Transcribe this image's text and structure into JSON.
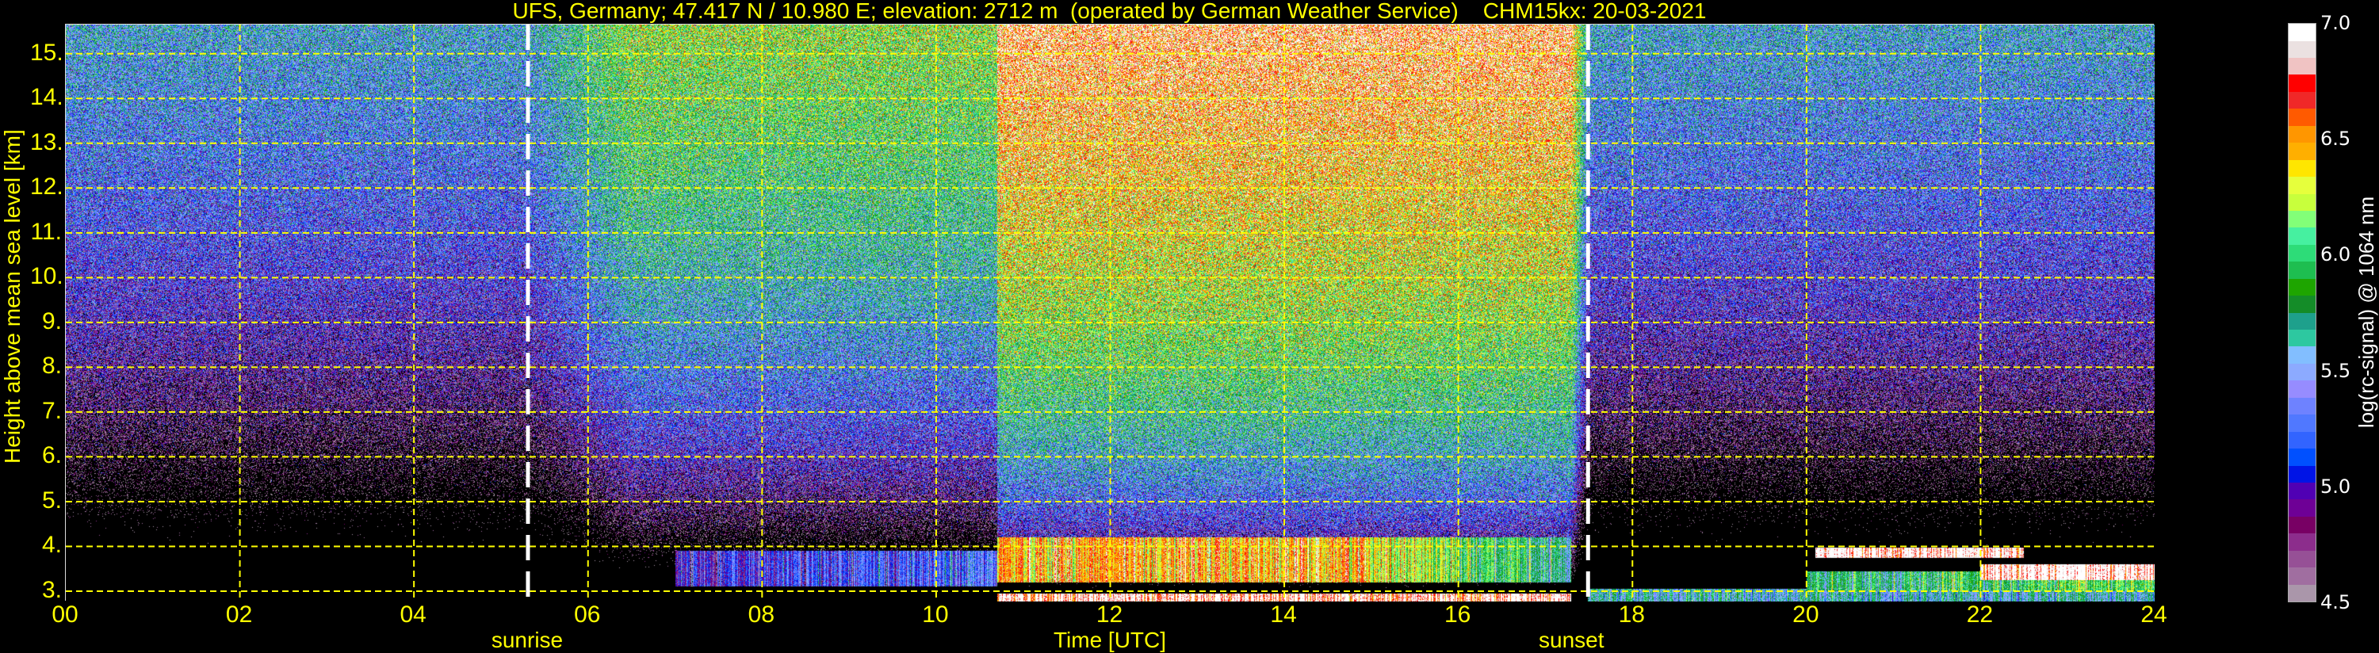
{
  "chart_data": {
    "type": "heatmap",
    "title": "UFS, Germany; 47.417 N / 10.980 E; elevation: 2712 m  (operated by German Weather Service)    CHM15kx: 20-03-2021",
    "xlabel": "Time [UTC]",
    "ylabel": "Height above mean sea level [km]",
    "xlim": [
      0,
      24
    ],
    "ylim": [
      2.77,
      15.65
    ],
    "xticks": [
      "00",
      "02",
      "04",
      "06",
      "08",
      "10",
      "12",
      "14",
      "16",
      "18",
      "20",
      "22",
      "24"
    ],
    "xtick_values": [
      0,
      2,
      4,
      6,
      8,
      10,
      12,
      14,
      16,
      18,
      20,
      22,
      24
    ],
    "yticks": [
      "3.",
      "4.",
      "5.",
      "6.",
      "7.",
      "8.",
      "9.",
      "10.",
      "11.",
      "12.",
      "13.",
      "14.",
      "15."
    ],
    "ytick_values": [
      3,
      4,
      5,
      6,
      7,
      8,
      9,
      10,
      11,
      12,
      13,
      14,
      15
    ],
    "grid": true,
    "grid_color": "#ffff00",
    "annotations": [
      {
        "label": "sunrise",
        "time": 5.31
      },
      {
        "label": "sunset",
        "time": 17.49
      }
    ],
    "colorbar": {
      "label": "log(rc-signal) @ 1064 nm",
      "range": [
        4.5,
        7.0
      ],
      "ticks": [
        "4.5",
        "5.0",
        "5.5",
        "6.0",
        "6.5",
        "7.0"
      ],
      "tick_values": [
        4.5,
        5.0,
        5.5,
        6.0,
        6.5,
        7.0
      ],
      "colors": [
        "#aa96aa",
        "#a06ea0",
        "#965096",
        "#8c2d8c",
        "#780064",
        "#6e0096",
        "#5000b4",
        "#0014e6",
        "#0050ff",
        "#3264ff",
        "#5078ff",
        "#6e82ff",
        "#968cff",
        "#8caaff",
        "#82beff",
        "#2dc8a0",
        "#1ea08c",
        "#148c28",
        "#1ea500",
        "#1ebe50",
        "#2ddc78",
        "#46f0a0",
        "#82ff78",
        "#c8ff3c",
        "#e6ff3c",
        "#ffe600",
        "#ffaf00",
        "#ff9600",
        "#ff5a00",
        "#f02828",
        "#ff0000",
        "#f0c3c3",
        "#ebe1e1",
        "#ffffff"
      ]
    },
    "features": [
      {
        "name": "background noise",
        "period": "night",
        "time": [
          0,
          5.31
        ],
        "level": 5.5
      },
      {
        "name": "background noise",
        "period": "morning",
        "time": [
          5.31,
          10.7
        ],
        "level": 6.1
      },
      {
        "name": "background noise",
        "period": "midday",
        "time": [
          10.7,
          17.3
        ],
        "level": 6.7
      },
      {
        "name": "background noise",
        "period": "evening",
        "time": [
          17.49,
          24
        ],
        "level": 5.5
      },
      {
        "name": "aerosol layer",
        "time": [
          7.0,
          10.7
        ],
        "height": [
          3.1,
          3.9
        ],
        "level": 5.0
      },
      {
        "name": "boundary layer",
        "time": [
          10.7,
          17.3
        ],
        "height": [
          3.2,
          4.2
        ],
        "level": 6.5
      },
      {
        "name": "near-ground signal",
        "time": [
          10.7,
          17.3
        ],
        "height": [
          2.77,
          2.95
        ],
        "level": 6.9
      },
      {
        "name": "near-ground signal",
        "time": [
          17.49,
          24
        ],
        "height": [
          2.77,
          3.05
        ],
        "level": 5.6
      },
      {
        "name": "aerosol layer",
        "time": [
          20.0,
          24
        ],
        "height": [
          3.0,
          3.45
        ],
        "level": 4.7
      },
      {
        "name": "cloud",
        "time": [
          20.1,
          22.5
        ],
        "height": [
          3.75,
          3.97
        ],
        "level": 7.0
      },
      {
        "name": "cloud",
        "time": [
          22.0,
          24
        ],
        "height": [
          3.25,
          3.6
        ],
        "level": 7.0
      }
    ]
  }
}
